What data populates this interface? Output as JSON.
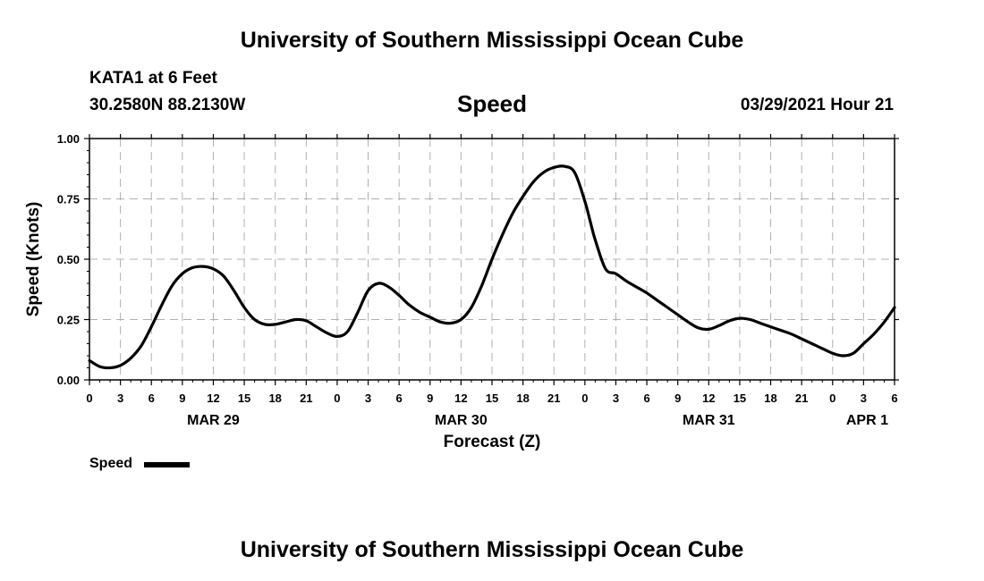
{
  "header": {
    "top_title": "University of Southern Mississippi Ocean Cube",
    "station": "KATA1 at 6 Feet",
    "coords": "30.2580N  88.2130W",
    "variable": "Speed",
    "datetime": "03/29/2021 Hour 21",
    "bottom_title": "University of Southern Mississippi Ocean Cube"
  },
  "legend": {
    "label": "Speed"
  },
  "colors": {
    "line": "#000000",
    "grid": "#b0b0b0"
  },
  "chart_data": {
    "type": "line",
    "title": "Speed",
    "xlabel": "Forecast (Z)",
    "ylabel": "Speed (Knots)",
    "xlim": [
      0,
      78
    ],
    "ylim": [
      0,
      1
    ],
    "yticks": [
      0.0,
      0.25,
      0.5,
      0.75,
      1.0
    ],
    "ytick_labels": [
      "0.00",
      "0.25",
      "0.50",
      "0.75",
      "1.00"
    ],
    "xticks": [
      0,
      3,
      6,
      9,
      12,
      15,
      18,
      21,
      24,
      27,
      30,
      33,
      36,
      39,
      42,
      45,
      48,
      51,
      54,
      57,
      60,
      63,
      66,
      69,
      72,
      75,
      78
    ],
    "xtick_labels": [
      "0",
      "3",
      "6",
      "9",
      "12",
      "15",
      "18",
      "21",
      "0",
      "3",
      "6",
      "9",
      "12",
      "15",
      "18",
      "21",
      "0",
      "3",
      "6",
      "9",
      "12",
      "15",
      "18",
      "21",
      "0",
      "3",
      "6"
    ],
    "date_labels": [
      {
        "hour": 12,
        "text": "MAR 29"
      },
      {
        "hour": 36,
        "text": "MAR 30"
      },
      {
        "hour": 60,
        "text": "MAR 31"
      },
      {
        "hour": 78,
        "text": "APR 1"
      }
    ],
    "grid": true,
    "series": [
      {
        "name": "Speed",
        "x": [
          0,
          1,
          2,
          3,
          4,
          5,
          6,
          7,
          8,
          9,
          10,
          11,
          12,
          13,
          14,
          15,
          16,
          17,
          18,
          19,
          20,
          21,
          22,
          23,
          24,
          25,
          26,
          27,
          28,
          29,
          30,
          31,
          32,
          33,
          34,
          35,
          36,
          37,
          38,
          39,
          40,
          41,
          42,
          43,
          44,
          45,
          46,
          47,
          48,
          48.5,
          49,
          50,
          51,
          52,
          53,
          54,
          55,
          56,
          57,
          58,
          59,
          60,
          61,
          62,
          63,
          64,
          65,
          66,
          67,
          68,
          69,
          70,
          71,
          72,
          73,
          74,
          75,
          76,
          77,
          78
        ],
        "values": [
          0.08,
          0.055,
          0.05,
          0.06,
          0.09,
          0.14,
          0.22,
          0.31,
          0.39,
          0.44,
          0.465,
          0.47,
          0.46,
          0.43,
          0.37,
          0.3,
          0.25,
          0.23,
          0.23,
          0.24,
          0.25,
          0.245,
          0.22,
          0.195,
          0.18,
          0.2,
          0.28,
          0.37,
          0.4,
          0.385,
          0.35,
          0.31,
          0.28,
          0.26,
          0.24,
          0.235,
          0.25,
          0.3,
          0.39,
          0.5,
          0.6,
          0.69,
          0.76,
          0.82,
          0.86,
          0.88,
          0.885,
          0.86,
          0.74,
          0.66,
          0.58,
          0.46,
          0.44,
          0.41,
          0.385,
          0.36,
          0.33,
          0.3,
          0.27,
          0.24,
          0.215,
          0.21,
          0.225,
          0.245,
          0.255,
          0.25,
          0.235,
          0.22,
          0.205,
          0.19,
          0.17,
          0.15,
          0.13,
          0.11,
          0.1,
          0.11,
          0.15,
          0.19,
          0.24,
          0.3
        ]
      }
    ]
  }
}
